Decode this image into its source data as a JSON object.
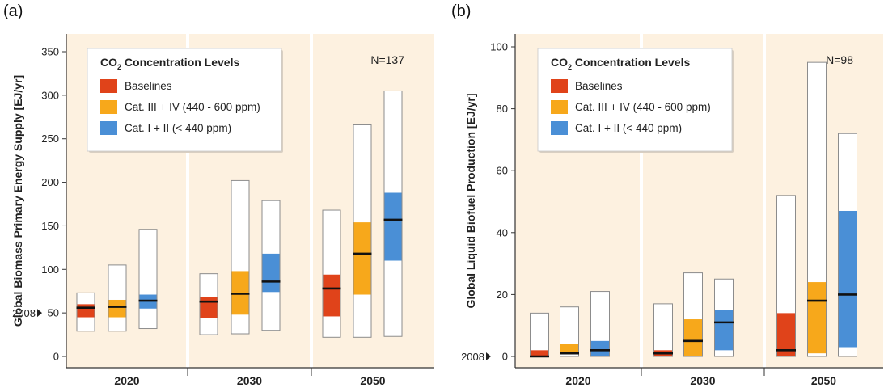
{
  "colors": {
    "baseline": "#e0431a",
    "cat34": "#f7a81b",
    "cat12": "#4a8fd6",
    "panel_bg": "#fdf1e0",
    "box_fill": "#ffffff",
    "box_stroke": "#8c8c8c"
  },
  "chart_data": [
    {
      "type": "boxplot",
      "panel_label": "(a)",
      "ylabel": "Global Biomass Primary Energy Supply [EJ/yr]",
      "ylim": [
        0,
        370
      ],
      "yticks": [
        0,
        50,
        100,
        150,
        200,
        250,
        300,
        350
      ],
      "marker": {
        "label": "2008",
        "value": 50
      },
      "n_label": "N=137",
      "legend": {
        "title_main": "CO",
        "title_sub": "2",
        "title_rest": " Concentration Levels",
        "entries": [
          "Baselines",
          "Cat. III + IV (440 - 600 ppm)",
          "Cat. I + II (< 440 ppm)"
        ]
      },
      "categories": [
        "2020",
        "2030",
        "2050"
      ],
      "series": [
        {
          "name": "Baselines",
          "color_key": "baseline",
          "values": [
            {
              "min": 29,
              "q1": 45,
              "median": 56,
              "q3": 60,
              "max": 73
            },
            {
              "min": 25,
              "q1": 44,
              "median": 63,
              "q3": 68,
              "max": 95
            },
            {
              "min": 22,
              "q1": 46,
              "median": 78,
              "q3": 94,
              "max": 168
            }
          ]
        },
        {
          "name": "Cat. III + IV (440 - 600 ppm)",
          "color_key": "cat34",
          "values": [
            {
              "min": 29,
              "q1": 45,
              "median": 57,
              "q3": 65,
              "max": 105
            },
            {
              "min": 26,
              "q1": 48,
              "median": 72,
              "q3": 98,
              "max": 202
            },
            {
              "min": 22,
              "q1": 71,
              "median": 118,
              "q3": 154,
              "max": 266
            }
          ]
        },
        {
          "name": "Cat. I + II (< 440 ppm)",
          "color_key": "cat12",
          "values": [
            {
              "min": 32,
              "q1": 55,
              "median": 64,
              "q3": 71,
              "max": 146
            },
            {
              "min": 30,
              "q1": 74,
              "median": 86,
              "q3": 118,
              "max": 179
            },
            {
              "min": 23,
              "q1": 110,
              "median": 157,
              "q3": 188,
              "max": 305
            }
          ]
        }
      ]
    },
    {
      "type": "boxplot",
      "panel_label": "(b)",
      "ylabel": "Global Liquid Biofuel Production [EJ/yr]",
      "ylim": [
        0,
        104
      ],
      "yticks": [
        0,
        20,
        40,
        60,
        80,
        100
      ],
      "marker": {
        "label": "2008",
        "value": 0
      },
      "n_label": "N=98",
      "legend": {
        "title_main": "CO",
        "title_sub": "2",
        "title_rest": " Concentration Levels",
        "entries": [
          "Baselines",
          "Cat. III + IV (440 - 600 ppm)",
          "Cat. I + II (< 440 ppm)"
        ]
      },
      "categories": [
        "2020",
        "2030",
        "2050"
      ],
      "series": [
        {
          "name": "Baselines",
          "color_key": "baseline",
          "values": [
            {
              "min": 0,
              "q1": 0,
              "median": 0,
              "q3": 2,
              "max": 14
            },
            {
              "min": 0,
              "q1": 0,
              "median": 1,
              "q3": 2,
              "max": 17
            },
            {
              "min": 0,
              "q1": 0,
              "median": 2,
              "q3": 14,
              "max": 52
            }
          ]
        },
        {
          "name": "Cat. III + IV (440 - 600 ppm)",
          "color_key": "cat34",
          "values": [
            {
              "min": 0,
              "q1": 1,
              "median": 1,
              "q3": 4,
              "max": 16
            },
            {
              "min": 0,
              "q1": 0,
              "median": 5,
              "q3": 12,
              "max": 27
            },
            {
              "min": 0,
              "q1": 1,
              "median": 18,
              "q3": 24,
              "max": 95
            }
          ]
        },
        {
          "name": "Cat. I + II (< 440 ppm)",
          "color_key": "cat12",
          "values": [
            {
              "min": 0,
              "q1": 0,
              "median": 2,
              "q3": 5,
              "max": 21
            },
            {
              "min": 0,
              "q1": 2,
              "median": 11,
              "q3": 15,
              "max": 25
            },
            {
              "min": 0,
              "q1": 3,
              "median": 20,
              "q3": 47,
              "max": 72
            }
          ]
        }
      ]
    }
  ]
}
